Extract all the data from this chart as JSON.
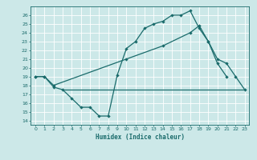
{
  "xlabel": "Humidex (Indice chaleur)",
  "bg_color": "#cce8e8",
  "grid_color": "#ffffff",
  "line_color": "#1a6b6b",
  "xlim": [
    -0.5,
    23.5
  ],
  "ylim": [
    13.5,
    27
  ],
  "yticks": [
    14,
    15,
    16,
    17,
    18,
    19,
    20,
    21,
    22,
    23,
    24,
    25,
    26
  ],
  "xticks": [
    0,
    1,
    2,
    3,
    4,
    5,
    6,
    7,
    8,
    9,
    10,
    11,
    12,
    13,
    14,
    15,
    16,
    17,
    18,
    19,
    20,
    21,
    22,
    23
  ],
  "line1_x": [
    0,
    1,
    2,
    3,
    4,
    5,
    6,
    7,
    8,
    9,
    10,
    11,
    12,
    13,
    14,
    15,
    16,
    17,
    18,
    19,
    20,
    21
  ],
  "line1_y": [
    19.0,
    19.0,
    17.8,
    17.5,
    16.5,
    15.5,
    15.5,
    14.5,
    14.5,
    19.2,
    22.2,
    23.0,
    24.5,
    25.0,
    25.3,
    26.0,
    26.0,
    26.5,
    24.5,
    23.0,
    20.5,
    19.0
  ],
  "line2_x": [
    0,
    1,
    2,
    10,
    14,
    17,
    18,
    19,
    20,
    21,
    22,
    23
  ],
  "line2_y": [
    19.0,
    19.0,
    18.0,
    21.0,
    22.5,
    24.0,
    24.8,
    23.0,
    21.0,
    20.5,
    19.0,
    17.5
  ],
  "line3_x": [
    3,
    22,
    23
  ],
  "line3_y": [
    17.5,
    17.5,
    17.5
  ],
  "lw": 0.9,
  "ms": 2.2
}
